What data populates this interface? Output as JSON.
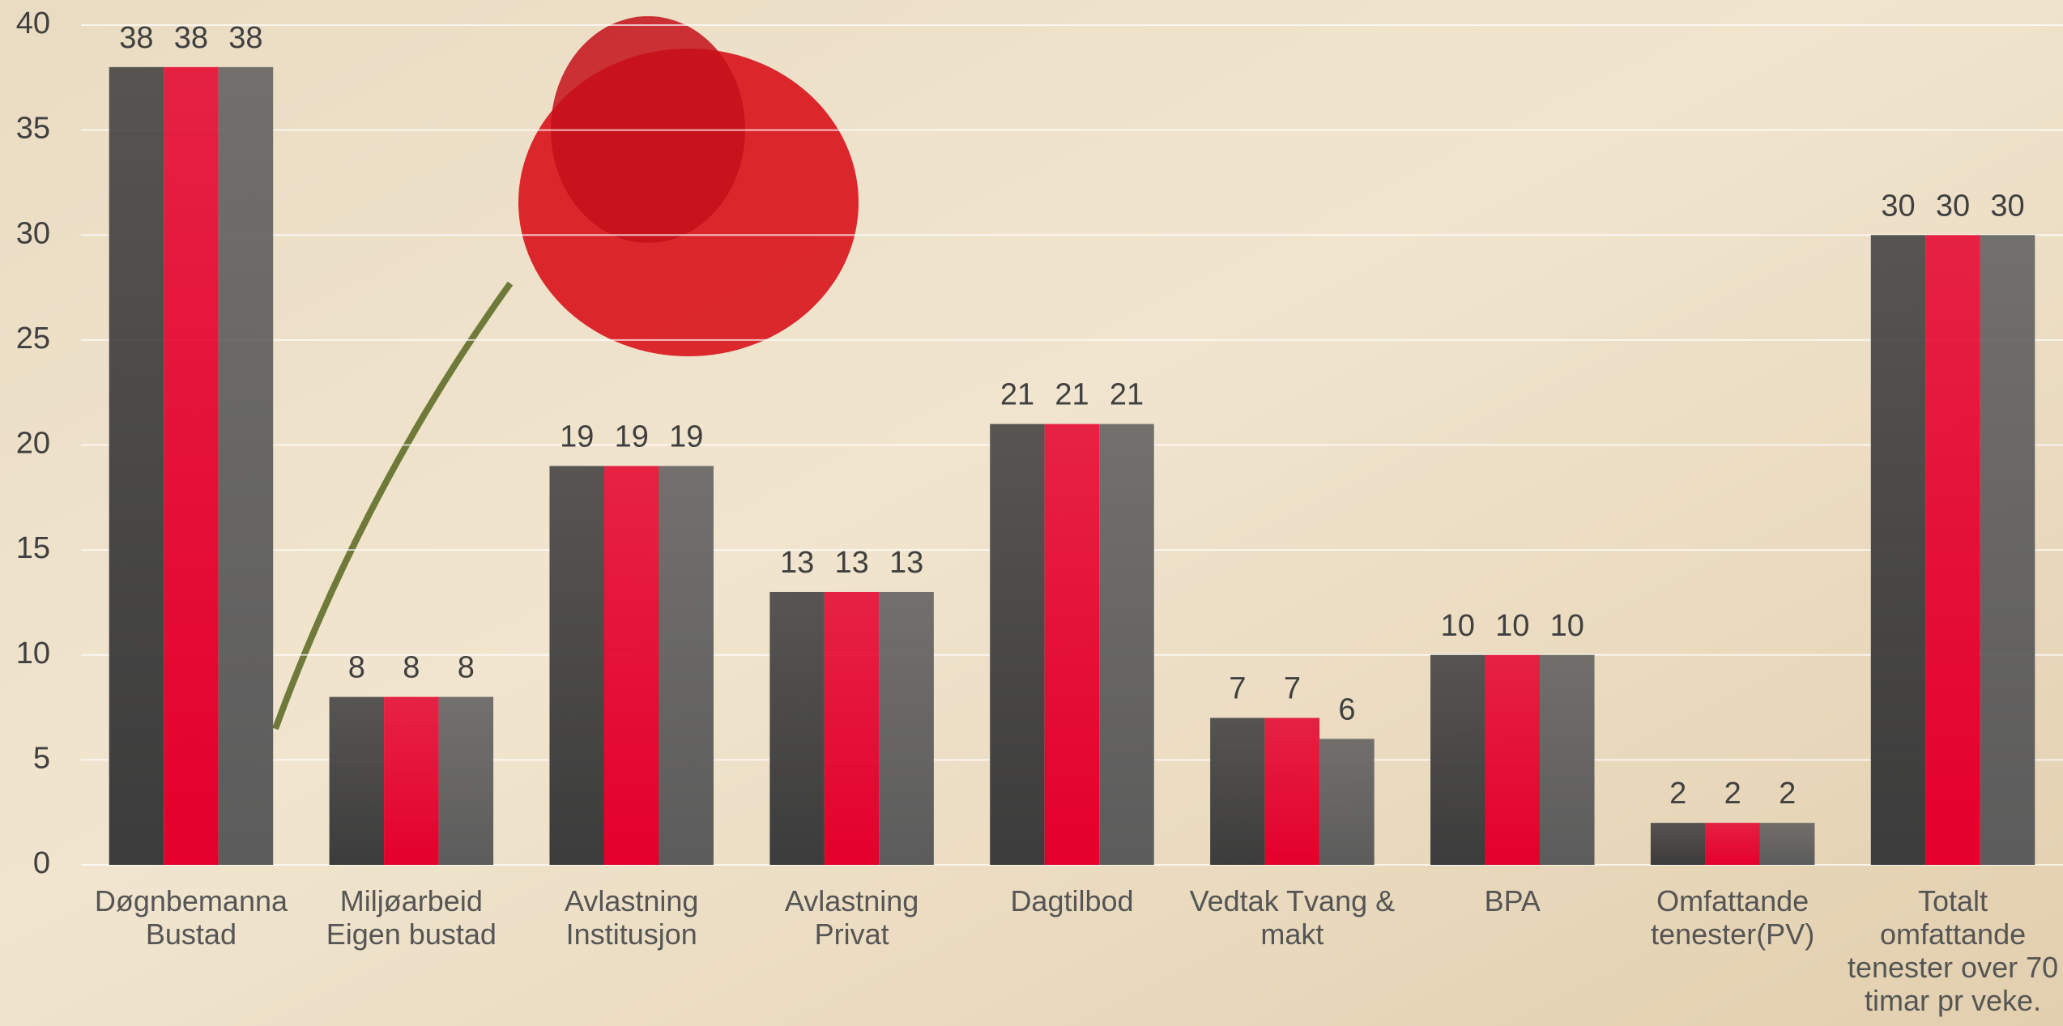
{
  "chart_data": {
    "type": "bar",
    "categories": [
      "Døgnbemanna Bustad",
      "Miljøarbeid Eigen bustad",
      "Avlastning Institusjon",
      "Avlastning Privat",
      "Dagtilbod",
      "Vedtak Tvang & makt",
      "BPA",
      "Omfattande tenester(PV)",
      "Totalt omfattande tenester over 70 timar pr veke."
    ],
    "series": [
      {
        "color": "#3c3c3c",
        "values": [
          38,
          8,
          19,
          13,
          21,
          7,
          10,
          2,
          30
        ]
      },
      {
        "color": "#e4002b",
        "values": [
          38,
          8,
          19,
          13,
          21,
          7,
          10,
          2,
          30
        ]
      },
      {
        "color": "#5c5c5c",
        "values": [
          38,
          8,
          19,
          13,
          21,
          6,
          10,
          2,
          30
        ]
      }
    ],
    "ylim": [
      0,
      40
    ],
    "yticks": [
      0,
      5,
      10,
      15,
      20,
      25,
      30,
      35,
      40
    ],
    "grid": true
  }
}
